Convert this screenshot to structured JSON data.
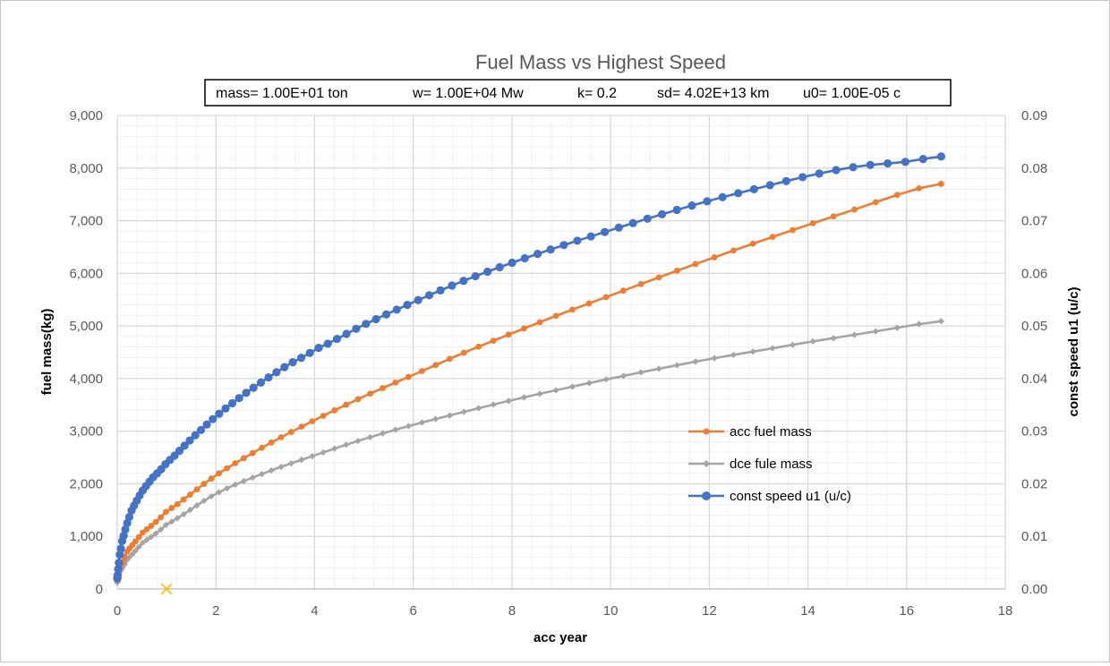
{
  "chart_data": {
    "type": "line",
    "title": "Fuel Mass vs Highest Speed",
    "parameters": {
      "mass": "mass= 1.00E+01   ton",
      "w": "w= 1.00E+04  Mw",
      "k": "k=  0.2",
      "sd": "sd= 4.02E+13  km",
      "u0": "u0= 1.00E-05   c"
    },
    "xlabel": "acc year",
    "ylabel": "fuel mass(kg)",
    "y2label": "const speed u1 (u/c)",
    "xlim": [
      0,
      18
    ],
    "ylim": [
      0,
      9000
    ],
    "y2lim": [
      0,
      0.09
    ],
    "x_ticks": [
      "0",
      "2",
      "4",
      "6",
      "8",
      "10",
      "12",
      "14",
      "16",
      "18"
    ],
    "y_ticks": [
      "0",
      "1,000",
      "2,000",
      "3,000",
      "4,000",
      "5,000",
      "6,000",
      "7,000",
      "8,000",
      "9,000"
    ],
    "y2_ticks": [
      "0.00",
      "0.01",
      "0.02",
      "0.03",
      "0.04",
      "0.05",
      "0.06",
      "0.07",
      "0.08",
      "0.09"
    ],
    "grid": true,
    "legend_position": "center-right",
    "series": [
      {
        "name": "acc fuel mass",
        "axis": "left",
        "color": "#ed7d31",
        "marker": "circle",
        "x": [
          0,
          0.05,
          0.2,
          0.5,
          1,
          2,
          3,
          4,
          5,
          6,
          7,
          8,
          9,
          10,
          11,
          12,
          13,
          14,
          15,
          16,
          16.7
        ],
        "y": [
          180,
          400,
          720,
          1060,
          1480,
          2160,
          2720,
          3210,
          3660,
          4070,
          4480,
          4860,
          5230,
          5580,
          5930,
          6270,
          6600,
          6920,
          7230,
          7540,
          7700
        ]
      },
      {
        "name": "dce fule mass",
        "axis": "left",
        "color": "#a5a5a5",
        "marker": "diamond",
        "x": [
          0,
          0.05,
          0.2,
          0.5,
          1,
          2,
          3,
          4,
          5,
          6,
          7,
          8,
          9,
          10,
          11,
          12,
          13,
          14,
          15,
          16,
          16.7
        ],
        "y": [
          120,
          320,
          560,
          870,
          1230,
          1810,
          2210,
          2540,
          2850,
          3120,
          3360,
          3590,
          3800,
          4000,
          4190,
          4370,
          4530,
          4690,
          4840,
          4990,
          5090
        ]
      },
      {
        "name": "const speed u1 (u/c)",
        "axis": "right",
        "color": "#4472c4",
        "marker": "circle",
        "x": [
          0,
          0.02,
          0.05,
          0.1,
          0.2,
          0.3,
          0.5,
          0.7,
          1,
          1.5,
          2,
          2.5,
          3,
          3.5,
          4,
          5,
          6,
          7,
          8,
          9,
          10,
          11,
          12,
          13,
          14,
          15,
          16,
          16.7
        ],
        "y": [
          0.002,
          0.004,
          0.0065,
          0.0092,
          0.0125,
          0.0152,
          0.0185,
          0.021,
          0.024,
          0.0285,
          0.0328,
          0.0365,
          0.0398,
          0.0428,
          0.0455,
          0.0502,
          0.0545,
          0.0585,
          0.062,
          0.0652,
          0.0682,
          0.0711,
          0.0738,
          0.0762,
          0.0785,
          0.0803,
          0.0812,
          0.0822
        ]
      }
    ],
    "annotations": [
      {
        "marker": "x",
        "x": 1,
        "y": 0,
        "color": "#ffc000"
      }
    ]
  }
}
